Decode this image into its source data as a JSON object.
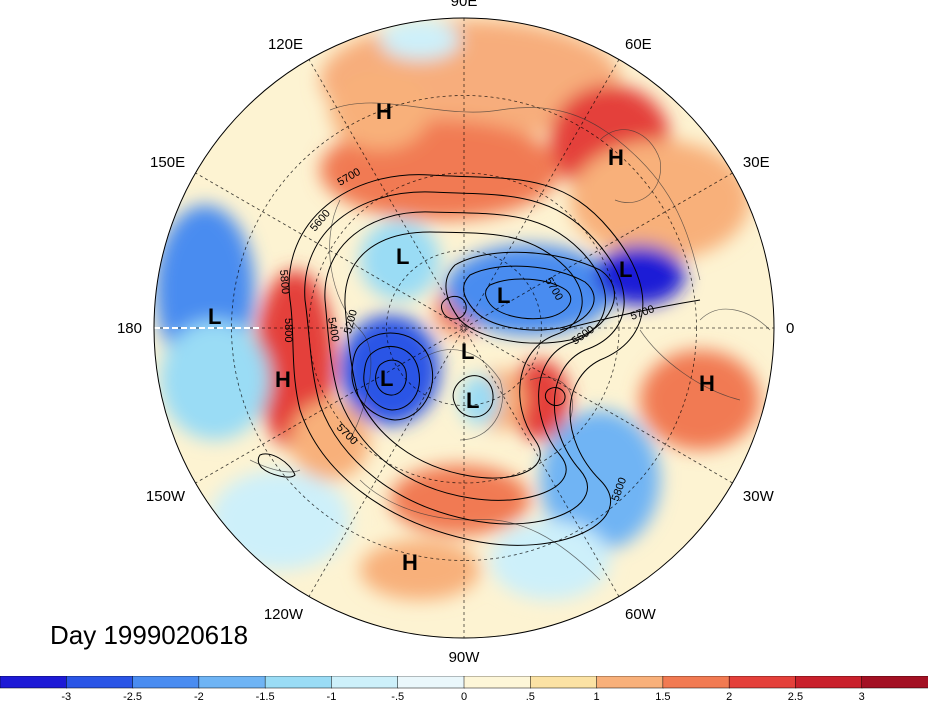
{
  "title": "Day 1999020618",
  "longitude_labels": [
    {
      "text": "90E",
      "deg": 90
    },
    {
      "text": "60E",
      "deg": 60
    },
    {
      "text": "30E",
      "deg": 30
    },
    {
      "text": "0",
      "deg": 0
    },
    {
      "text": "30W",
      "deg": -30
    },
    {
      "text": "60W",
      "deg": -60
    },
    {
      "text": "90W",
      "deg": -90
    },
    {
      "text": "120W",
      "deg": -120
    },
    {
      "text": "150W",
      "deg": -150
    },
    {
      "text": "180",
      "deg": 180
    },
    {
      "text": "150E",
      "deg": 150
    },
    {
      "text": "120E",
      "deg": 120
    }
  ],
  "pressure_systems": [
    {
      "type": "H",
      "label": "H"
    },
    {
      "type": "H",
      "label": "H"
    },
    {
      "type": "H",
      "label": "H"
    },
    {
      "type": "H",
      "label": "H"
    },
    {
      "type": "H",
      "label": "H"
    },
    {
      "type": "L",
      "label": "L"
    },
    {
      "type": "L",
      "label": "L"
    },
    {
      "type": "L",
      "label": "L"
    },
    {
      "type": "L",
      "label": "L"
    },
    {
      "type": "L",
      "label": "L"
    },
    {
      "type": "L",
      "label": "L"
    },
    {
      "type": "L",
      "label": "L"
    }
  ],
  "contour_labels": [
    "5700",
    "5600",
    "5800",
    "5800",
    "5400",
    "5200",
    "5700",
    "5700",
    "5600",
    "5700",
    "5800"
  ],
  "colorbar": {
    "ticks": [
      "-3",
      "-2.5",
      "-2",
      "-1.5",
      "-1",
      "-.5",
      "0",
      ".5",
      "1",
      "1.5",
      "2",
      "2.5",
      "3"
    ],
    "colors": [
      "#1d1ad6",
      "#2a55e6",
      "#4a8cf0",
      "#6fb4f4",
      "#9adcf5",
      "#cdf0fa",
      "#eaf7fb",
      "#fdf6d8",
      "#fbe2a4",
      "#f8b07a",
      "#f17a52",
      "#e4403a",
      "#c9202b",
      "#a31023"
    ]
  }
}
